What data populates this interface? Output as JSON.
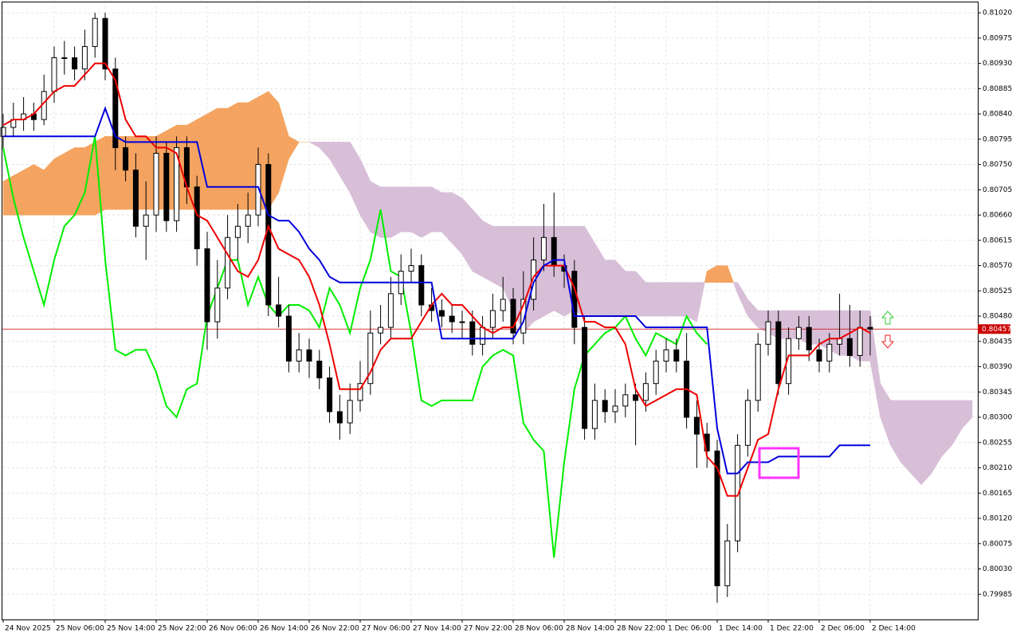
{
  "chart_data": {
    "type": "candlestick",
    "categories": [
      "24 Nov 2025",
      null,
      null,
      null,
      null,
      "25 Nov 06:00",
      null,
      null,
      null,
      null,
      "25 Nov 14:00",
      null,
      null,
      null,
      null,
      "25 Nov 22:00",
      null,
      null,
      null,
      null,
      "26 Nov 06:00",
      null,
      null,
      null,
      null,
      "26 Nov 14:00",
      null,
      null,
      null,
      null,
      "26 Nov 22:00",
      null,
      null,
      null,
      null,
      "27 Nov 06:00",
      null,
      null,
      null,
      null,
      "27 Nov 14:00",
      null,
      null,
      null,
      null,
      "27 Nov 22:00",
      null,
      null,
      null,
      null,
      "28 Nov 06:00",
      null,
      null,
      null,
      null,
      "28 Nov 14:00",
      null,
      null,
      null,
      null,
      "28 Nov 22:00",
      null,
      null,
      null,
      null,
      "1 Dec 06:00",
      null,
      null,
      null,
      null,
      "1 Dec 14:00",
      null,
      null,
      null,
      null,
      "1 Dec 22:00",
      null,
      null,
      null,
      null,
      "2 Dec 06:00",
      null,
      null,
      null,
      null,
      "2 Dec 14:00",
      null,
      null,
      null,
      null,
      null,
      null,
      null,
      null,
      null,
      null
    ],
    "open": [
      0.808,
      0.80816,
      0.8083,
      0.8084,
      0.8083,
      0.8088,
      0.8094,
      0.8094,
      0.8092,
      0.8096,
      0.8101,
      0.8092,
      0.8078,
      0.8074,
      0.8064,
      0.8066,
      0.8077,
      0.8065,
      0.8078,
      0.8071,
      0.806,
      0.8047,
      0.8053,
      0.8062,
      0.8064,
      0.8066,
      0.8075,
      0.805,
      0.8048,
      0.804,
      0.8042,
      0.804,
      0.8037,
      0.8031,
      0.8029,
      0.8033,
      0.8036,
      0.8045,
      0.8046,
      0.8052,
      0.8056,
      0.8057,
      0.805,
      0.8049,
      0.8048,
      0.8047,
      0.8047,
      0.8043,
      0.8046,
      0.8049,
      0.8051,
      0.8045,
      0.8051,
      0.8058,
      0.8062,
      0.8057,
      0.8056,
      0.8046,
      0.8028,
      0.8033,
      0.8031,
      0.8032,
      0.8034,
      0.8033,
      0.8036,
      0.804,
      0.8042,
      0.804,
      0.803,
      0.8027,
      0.8024,
      0.8,
      0.8008,
      0.8025,
      0.8033,
      0.8043,
      0.8047,
      0.8036,
      0.8044,
      0.8046,
      0.8042,
      0.804,
      0.8043,
      0.8044,
      0.8041,
      0.8046,
      null,
      null,
      null,
      null,
      null,
      null,
      null,
      null,
      null,
      null
    ],
    "high": [
      0.8084,
      0.8086,
      0.8087,
      0.8086,
      0.8091,
      0.8096,
      0.8097,
      0.8096,
      0.8099,
      0.8102,
      0.8102,
      0.8094,
      0.808,
      0.8077,
      0.8072,
      0.808,
      0.8079,
      0.808,
      0.808,
      0.8073,
      0.8063,
      0.8058,
      0.8066,
      0.8068,
      0.807,
      0.8078,
      0.8077,
      0.8055,
      0.805,
      0.8045,
      0.8044,
      0.8042,
      0.8039,
      0.8034,
      0.8036,
      0.804,
      0.8049,
      0.805,
      0.8055,
      0.8059,
      0.806,
      0.8059,
      0.8053,
      0.8051,
      0.805,
      0.8049,
      0.8049,
      0.8048,
      0.8052,
      0.8055,
      0.8053,
      0.8056,
      0.8062,
      0.8068,
      0.807,
      0.8059,
      0.8058,
      0.8048,
      0.8036,
      0.8035,
      0.8035,
      0.8036,
      0.8036,
      0.8038,
      0.8042,
      0.8044,
      0.8044,
      0.8045,
      0.8033,
      0.8029,
      0.8026,
      0.8011,
      0.8027,
      0.8035,
      0.8045,
      0.8049,
      0.8049,
      0.8046,
      0.8048,
      0.8048,
      0.8044,
      0.8045,
      0.8052,
      0.805,
      0.8049,
      0.8048,
      null,
      null,
      null,
      null,
      null,
      null,
      null,
      null,
      null,
      null
    ],
    "low": [
      0.8078,
      0.808,
      0.8081,
      0.8081,
      0.8082,
      0.8086,
      0.8091,
      0.809,
      0.809,
      0.8094,
      0.809,
      0.8074,
      0.8072,
      0.8062,
      0.8058,
      0.8063,
      0.8063,
      0.8063,
      0.8068,
      0.8057,
      0.8042,
      0.8044,
      0.8051,
      0.8058,
      0.8061,
      0.8064,
      0.8048,
      0.8046,
      0.8038,
      0.8038,
      0.8037,
      0.8035,
      0.8029,
      0.8026,
      0.8027,
      0.8031,
      0.8034,
      0.8043,
      0.8044,
      0.805,
      0.8054,
      0.8048,
      0.8047,
      0.8046,
      0.8045,
      0.8044,
      0.8041,
      0.8041,
      0.8044,
      0.8047,
      0.8043,
      0.8043,
      0.8049,
      0.8056,
      0.8055,
      0.8053,
      0.8043,
      0.8026,
      0.8026,
      0.8029,
      0.8029,
      0.803,
      0.8025,
      0.8031,
      0.8034,
      0.8038,
      0.8038,
      0.8028,
      0.8021,
      0.8021,
      0.7997,
      0.7998,
      0.8006,
      0.8023,
      0.8031,
      0.8041,
      0.8034,
      0.8034,
      0.8042,
      0.804,
      0.8038,
      0.8038,
      0.8041,
      0.8039,
      0.8039,
      0.8041,
      null,
      null,
      null,
      null,
      null,
      null,
      null,
      null,
      null,
      null
    ],
    "close": [
      0.80816,
      0.8083,
      0.8084,
      0.8083,
      0.8088,
      0.8094,
      0.8094,
      0.8092,
      0.8096,
      0.8101,
      0.8092,
      0.8078,
      0.8074,
      0.8064,
      0.8066,
      0.8077,
      0.8065,
      0.8078,
      0.8071,
      0.806,
      0.8047,
      0.8053,
      0.8062,
      0.8064,
      0.8066,
      0.8075,
      0.805,
      0.8048,
      0.804,
      0.8042,
      0.804,
      0.8037,
      0.8031,
      0.8029,
      0.8033,
      0.8036,
      0.8045,
      0.8046,
      0.8052,
      0.8056,
      0.8057,
      0.805,
      0.8049,
      0.8048,
      0.8047,
      0.8047,
      0.8043,
      0.8046,
      0.8049,
      0.8051,
      0.8045,
      0.8051,
      0.8058,
      0.8062,
      0.8057,
      0.8056,
      0.8046,
      0.8028,
      0.8033,
      0.8031,
      0.8032,
      0.8034,
      0.8033,
      0.8036,
      0.804,
      0.8042,
      0.804,
      0.803,
      0.8027,
      0.8024,
      0.8,
      0.8008,
      0.8025,
      0.8033,
      0.8043,
      0.8047,
      0.8036,
      0.8044,
      0.8046,
      0.8042,
      0.804,
      0.8043,
      0.8044,
      0.8041,
      0.8046,
      0.80457,
      null,
      null,
      null,
      null,
      null,
      null,
      null,
      null,
      null,
      null
    ],
    "up_color": "#ffffff",
    "down_color": "#000000",
    "cloud": {
      "span_a": [
        0.8072,
        0.8073,
        0.8074,
        0.8075,
        0.8074,
        0.8076,
        0.8077,
        0.8078,
        0.8078,
        0.8079,
        0.808,
        0.808,
        0.808,
        0.808,
        0.808,
        0.808,
        0.8081,
        0.8082,
        0.8082,
        0.8083,
        0.8084,
        0.8085,
        0.8085,
        0.8086,
        0.8086,
        0.8087,
        0.8088,
        0.8086,
        0.808,
        0.8079,
        0.8079,
        0.8078,
        0.8076,
        0.8073,
        0.807,
        0.8066,
        0.8063,
        0.8062,
        0.8062,
        0.8063,
        0.8063,
        0.8062,
        0.8063,
        0.8063,
        0.8061,
        0.8059,
        0.8056,
        0.8055,
        0.8054,
        0.8053,
        0.8049,
        0.8045,
        0.8047,
        0.8048,
        0.8049,
        0.8048,
        0.8049,
        0.8048,
        0.8048,
        0.8048,
        0.8048,
        0.8048,
        0.8048,
        0.8048,
        0.8048,
        0.8048,
        0.8048,
        0.8048,
        0.8047,
        0.8056,
        0.8057,
        0.8057,
        0.8052,
        0.8048,
        0.8046,
        0.8045,
        0.8044,
        0.8044,
        0.8044,
        0.8043,
        0.8043,
        0.8042,
        0.8041,
        0.8041,
        0.804,
        0.804,
        0.803,
        0.8025,
        0.8022,
        0.802,
        0.8018,
        0.802,
        0.8023,
        0.8025,
        0.8028,
        0.803
      ],
      "span_b": [
        0.8066,
        0.8066,
        0.8066,
        0.8066,
        0.8066,
        0.8066,
        0.8066,
        0.8066,
        0.8066,
        0.8066,
        0.8067,
        0.8067,
        0.8067,
        0.8067,
        0.8067,
        0.8067,
        0.8067,
        0.8067,
        0.8067,
        0.8067,
        0.8067,
        0.8067,
        0.8067,
        0.8067,
        0.8067,
        0.8067,
        0.8067,
        0.807,
        0.8076,
        0.8079,
        0.8079,
        0.8079,
        0.8079,
        0.8079,
        0.8079,
        0.8076,
        0.8072,
        0.8071,
        0.8071,
        0.8071,
        0.8071,
        0.8071,
        0.8071,
        0.807,
        0.807,
        0.8069,
        0.8067,
        0.8065,
        0.8064,
        0.8064,
        0.8064,
        0.8064,
        0.8064,
        0.8064,
        0.8064,
        0.8064,
        0.8064,
        0.8064,
        0.8061,
        0.8058,
        0.8058,
        0.8056,
        0.8056,
        0.8054,
        0.8054,
        0.8054,
        0.8054,
        0.8054,
        0.8054,
        0.8054,
        0.8054,
        0.8054,
        0.8054,
        0.8051,
        0.8049,
        0.8049,
        0.8049,
        0.8049,
        0.8049,
        0.8049,
        0.8049,
        0.8049,
        0.8049,
        0.8049,
        0.8049,
        0.8049,
        0.8036,
        0.8033,
        0.8033,
        0.8033,
        0.8033,
        0.8033,
        0.8033,
        0.8033,
        0.8033,
        0.8033
      ],
      "bull_color": "#f4a460",
      "bear_color": "#d8bfd8"
    },
    "series": [
      {
        "color": "#00ee00",
        "values": [
          0.8078,
          0.8069,
          0.8062,
          0.8056,
          0.805,
          0.8058,
          0.8064,
          0.8066,
          0.807,
          0.808,
          0.8058,
          0.8042,
          0.8041,
          0.8042,
          0.8042,
          0.8038,
          0.8032,
          0.803,
          0.8035,
          0.8036,
          0.8048,
          0.8053,
          0.8058,
          0.8058,
          0.805,
          0.8055,
          0.805,
          0.8048,
          0.805,
          0.805,
          0.8049,
          0.8046,
          0.8053,
          0.805,
          0.8045,
          0.8053,
          0.8058,
          0.8067,
          0.8056,
          0.8055,
          0.8045,
          0.8033,
          0.8032,
          0.8033,
          0.8033,
          0.8033,
          0.8033,
          0.8039,
          0.8041,
          0.8042,
          0.8041,
          0.8029,
          0.8026,
          0.8024,
          0.8005,
          0.8022,
          0.8035,
          0.8041,
          0.8043,
          0.8045,
          0.8046,
          0.8048,
          0.8044,
          0.8041,
          0.8045,
          0.8044,
          0.8043,
          0.8048,
          0.8045,
          0.8043,
          null,
          null,
          null,
          null,
          null,
          null,
          null,
          null,
          null,
          null,
          null,
          null,
          null,
          null,
          null,
          null,
          null,
          null,
          null,
          null,
          null,
          null,
          null,
          null,
          null,
          null
        ]
      },
      {
        "color": "#ee0000",
        "values": [
          0.8082,
          0.8083,
          0.8083,
          0.8084,
          0.8086,
          0.8088,
          0.8089,
          0.8089,
          0.8091,
          0.8093,
          0.8093,
          0.809,
          0.8083,
          0.808,
          0.808,
          0.8078,
          0.8078,
          0.8077,
          0.8071,
          0.8066,
          0.8065,
          0.8062,
          0.8059,
          0.8056,
          0.8055,
          0.8058,
          0.8064,
          0.806,
          0.8059,
          0.8058,
          0.8055,
          0.805,
          0.8043,
          0.8035,
          0.8035,
          0.8035,
          0.8038,
          0.8042,
          0.8044,
          0.8044,
          0.8044,
          0.8047,
          0.805,
          0.8052,
          0.805,
          0.805,
          0.8048,
          0.8046,
          0.8045,
          0.8046,
          0.8046,
          0.805,
          0.8055,
          0.8057,
          0.8057,
          0.8057,
          0.8053,
          0.8047,
          0.8047,
          0.8046,
          0.8046,
          0.8043,
          0.8035,
          0.8032,
          0.8033,
          0.8034,
          0.8035,
          0.8035,
          0.8034,
          0.8023,
          0.8021,
          0.8016,
          0.8016,
          0.8021,
          0.8026,
          0.8027,
          0.8035,
          0.8041,
          0.8041,
          0.8041,
          0.8043,
          0.8044,
          0.8044,
          0.8045,
          0.8046,
          0.8045,
          null,
          null,
          null,
          null,
          null,
          null,
          null,
          null,
          null,
          null
        ]
      },
      {
        "color": "#0000dd",
        "values": [
          0.808,
          0.808,
          0.808,
          0.808,
          0.808,
          0.808,
          0.808,
          0.808,
          0.808,
          0.808,
          0.8085,
          0.808,
          0.8079,
          0.8079,
          0.8079,
          0.8079,
          0.8079,
          0.8079,
          0.8079,
          0.8079,
          0.8071,
          0.8071,
          0.8071,
          0.8071,
          0.8071,
          0.8071,
          0.8066,
          0.8065,
          0.8065,
          0.8063,
          0.806,
          0.8058,
          0.8055,
          0.8054,
          0.8054,
          0.8054,
          0.8054,
          0.8054,
          0.8054,
          0.8054,
          0.8054,
          0.8054,
          0.8054,
          0.8044,
          0.8044,
          0.8044,
          0.8044,
          0.8044,
          0.8044,
          0.8044,
          0.8044,
          0.8047,
          0.8054,
          0.8057,
          0.8058,
          0.8058,
          0.8048,
          0.8048,
          0.8048,
          0.8048,
          0.8048,
          0.8048,
          0.8048,
          0.8046,
          0.8046,
          0.8046,
          0.8046,
          0.8046,
          0.8046,
          0.8046,
          0.8028,
          0.802,
          0.802,
          0.8022,
          0.8022,
          0.8022,
          0.8023,
          0.8023,
          0.8023,
          0.8023,
          0.8023,
          0.8023,
          0.8025,
          0.8025,
          0.8025,
          0.8025,
          null,
          null,
          null,
          null,
          null,
          null,
          null,
          null,
          null,
          null
        ]
      }
    ],
    "current_price": 0.80457,
    "current_color": "#cc0000",
    "ylim": [
      0.7994,
      0.8104
    ],
    "yticks": [
      {
        "value": 0.8102,
        "label": "0.81020"
      },
      0.80975,
      {
        "value": 0.8093,
        "label": "0.80930"
      },
      0.80885,
      {
        "value": 0.8084,
        "label": "0.80840"
      },
      0.80795,
      {
        "value": 0.8075,
        "label": "0.80750"
      },
      0.80705,
      {
        "value": 0.8066,
        "label": "0.80660"
      },
      0.80615,
      {
        "value": 0.8057,
        "label": "0.80570"
      },
      0.80525,
      {
        "value": 0.8048,
        "label": "0.80480"
      },
      0.80435,
      {
        "value": 0.8039,
        "label": "0.80390"
      },
      0.80345,
      {
        "value": 0.803,
        "label": "0.80300"
      },
      0.80255,
      {
        "value": 0.8021,
        "label": "0.80210"
      },
      0.80165,
      {
        "value": 0.8012,
        "label": "0.80120"
      },
      0.80075,
      {
        "value": 0.8003,
        "label": "0.80030"
      },
      0.79985
    ],
    "grid": true
  }
}
